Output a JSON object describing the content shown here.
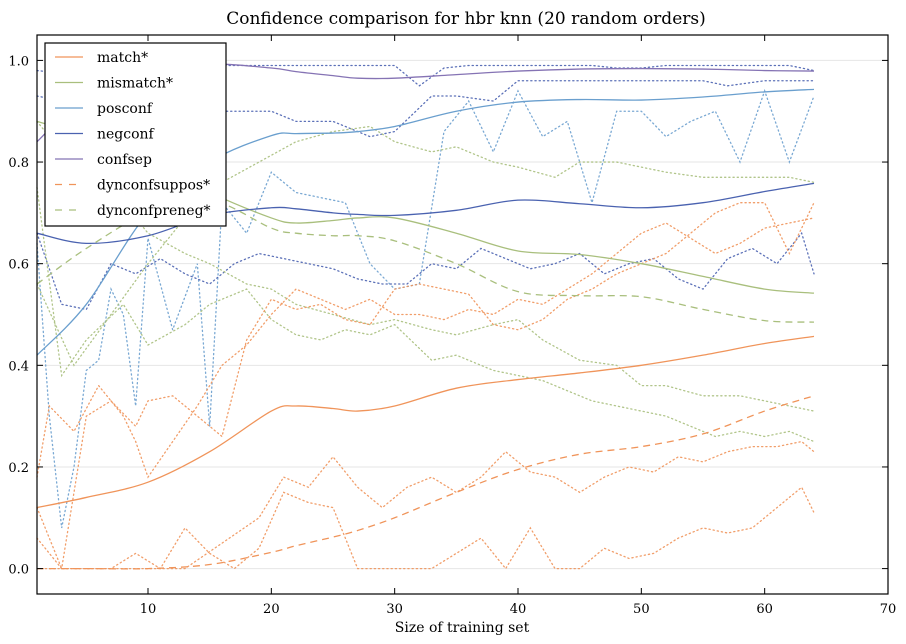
{
  "chart_data": {
    "type": "line",
    "title": "Confidence comparison for hbr knn (20 random orders)",
    "xlabel": "Size of training set",
    "ylabel": "",
    "xlim": [
      1,
      70
    ],
    "ylim": [
      -0.05,
      1.05
    ],
    "xticks": [
      10,
      20,
      30,
      40,
      50,
      60,
      70
    ],
    "xtick_labels": [
      "10",
      "20",
      "30",
      "40",
      "50",
      "60",
      "70"
    ],
    "yticks": [
      0.0,
      0.2,
      0.4,
      0.6,
      0.8,
      1.0
    ],
    "ytick_labels": [
      "0.0",
      "0.2",
      "0.4",
      "0.6",
      "0.8",
      "1.0"
    ],
    "grid": "horizontal",
    "legend_position": "top-left",
    "x": [
      1,
      5,
      10,
      15,
      20,
      22,
      25,
      27,
      30,
      35,
      40,
      45,
      50,
      55,
      60,
      64
    ],
    "series": [
      {
        "name": "match*",
        "style": "solid",
        "color": "#f0945a",
        "values": [
          0.12,
          0.14,
          0.17,
          0.23,
          0.31,
          0.32,
          0.315,
          0.31,
          0.32,
          0.355,
          0.372,
          0.385,
          0.4,
          0.42,
          0.443,
          0.457
        ]
      },
      {
        "name": "mismatch*",
        "style": "solid",
        "color": "#a9bf7d",
        "values": [
          0.88,
          0.85,
          0.8,
          0.74,
          0.69,
          0.68,
          0.685,
          0.69,
          0.69,
          0.66,
          0.625,
          0.618,
          0.6,
          0.575,
          0.55,
          0.542
        ]
      },
      {
        "name": "posconf",
        "style": "solid",
        "color": "#6a9fce",
        "values": [
          0.42,
          0.52,
          0.7,
          0.8,
          0.852,
          0.856,
          0.857,
          0.86,
          0.87,
          0.9,
          0.918,
          0.923,
          0.922,
          0.928,
          0.938,
          0.943
        ]
      },
      {
        "name": "negconf",
        "style": "solid",
        "color": "#4a62b0",
        "values": [
          0.66,
          0.64,
          0.655,
          0.695,
          0.71,
          0.708,
          0.7,
          0.697,
          0.695,
          0.705,
          0.725,
          0.718,
          0.71,
          0.72,
          0.742,
          0.758
        ]
      },
      {
        "name": "confsep",
        "style": "solid",
        "color": "#8573b4",
        "values": [
          0.84,
          0.93,
          0.98,
          0.993,
          0.985,
          0.978,
          0.97,
          0.965,
          0.965,
          0.972,
          0.979,
          0.983,
          0.984,
          0.983,
          0.98,
          0.979
        ]
      },
      {
        "name": "dynconfsuppos*",
        "style": "dashed",
        "color": "#f0945a",
        "values": [
          0.0,
          0.0,
          0.0,
          0.008,
          0.032,
          0.045,
          0.062,
          0.075,
          0.1,
          0.15,
          0.195,
          0.225,
          0.24,
          0.265,
          0.31,
          0.34
        ]
      },
      {
        "name": "dynconfpreneg*",
        "style": "dashed",
        "color": "#a9bf7d",
        "values": [
          0.56,
          0.63,
          0.7,
          0.725,
          0.67,
          0.66,
          0.655,
          0.655,
          0.645,
          0.6,
          0.545,
          0.537,
          0.535,
          0.51,
          0.488,
          0.485
        ]
      }
    ],
    "individual_orders": [
      {
        "color": "#6a9fce",
        "x": [
          1,
          2,
          3,
          4,
          5,
          6,
          7,
          8,
          9,
          10,
          12,
          14,
          15,
          16,
          18,
          20,
          22,
          24,
          26,
          28,
          30,
          32,
          34,
          36,
          38,
          40,
          42,
          44,
          46,
          48,
          50,
          52,
          54,
          56,
          58,
          60,
          62,
          64
        ],
        "values": [
          0.64,
          0.3,
          0.08,
          0.2,
          0.39,
          0.41,
          0.55,
          0.5,
          0.32,
          0.65,
          0.47,
          0.6,
          0.28,
          0.72,
          0.66,
          0.78,
          0.74,
          0.73,
          0.72,
          0.6,
          0.55,
          0.56,
          0.86,
          0.92,
          0.82,
          0.94,
          0.85,
          0.88,
          0.72,
          0.9,
          0.9,
          0.85,
          0.88,
          0.9,
          0.8,
          0.94,
          0.8,
          0.93
        ]
      },
      {
        "color": "#4a62b0",
        "x": [
          1,
          3,
          5,
          7,
          9,
          11,
          13,
          15,
          17,
          19,
          21,
          23,
          25,
          27,
          29,
          31,
          33,
          35,
          37,
          39,
          41,
          43,
          45,
          47,
          49,
          51,
          53,
          55,
          57,
          59,
          61,
          63,
          64
        ],
        "values": [
          0.66,
          0.52,
          0.51,
          0.6,
          0.58,
          0.61,
          0.58,
          0.56,
          0.6,
          0.62,
          0.61,
          0.6,
          0.59,
          0.57,
          0.56,
          0.56,
          0.6,
          0.59,
          0.63,
          0.61,
          0.59,
          0.6,
          0.62,
          0.58,
          0.6,
          0.61,
          0.57,
          0.55,
          0.61,
          0.63,
          0.6,
          0.66,
          0.58
        ]
      },
      {
        "color": "#4a62b0",
        "x": [
          1,
          5,
          10,
          15,
          18,
          20,
          22,
          25,
          28,
          30,
          32,
          34,
          36,
          38,
          40,
          42,
          44,
          46,
          48,
          50,
          52,
          54,
          56,
          58,
          60,
          62,
          64
        ],
        "values": [
          0.98,
          0.97,
          0.99,
          0.99,
          0.99,
          0.99,
          0.99,
          0.99,
          0.99,
          0.99,
          0.95,
          0.985,
          0.99,
          0.99,
          0.99,
          0.99,
          0.99,
          0.99,
          0.985,
          0.985,
          0.99,
          0.99,
          0.99,
          0.99,
          0.99,
          0.99,
          0.98
        ]
      },
      {
        "color": "#4a62b0",
        "x": [
          1,
          5,
          10,
          15,
          20,
          22,
          25,
          28,
          30,
          33,
          35,
          38,
          40,
          42,
          45,
          48,
          50,
          52,
          55,
          57,
          60,
          62,
          64
        ],
        "values": [
          0.93,
          0.91,
          0.88,
          0.9,
          0.9,
          0.88,
          0.88,
          0.85,
          0.86,
          0.93,
          0.93,
          0.92,
          0.96,
          0.96,
          0.96,
          0.96,
          0.96,
          0.96,
          0.96,
          0.95,
          0.96,
          0.96,
          0.96
        ]
      },
      {
        "color": "#a9bf7d",
        "x": [
          1,
          3,
          5,
          8,
          10,
          13,
          15,
          18,
          20,
          22,
          25,
          28,
          30,
          33,
          35,
          38,
          40,
          42,
          45,
          48,
          50,
          52,
          55,
          58,
          60,
          62,
          64
        ],
        "values": [
          0.88,
          0.82,
          0.78,
          0.72,
          0.66,
          0.62,
          0.6,
          0.56,
          0.55,
          0.52,
          0.5,
          0.48,
          0.49,
          0.47,
          0.46,
          0.48,
          0.49,
          0.45,
          0.41,
          0.4,
          0.36,
          0.36,
          0.34,
          0.34,
          0.33,
          0.32,
          0.31
        ]
      },
      {
        "color": "#a9bf7d",
        "x": [
          1,
          4,
          7,
          10,
          13,
          16,
          19,
          22,
          25,
          28,
          30,
          33,
          35,
          38,
          40,
          43,
          45,
          48,
          50,
          52,
          55,
          58,
          60,
          62,
          64
        ],
        "values": [
          0.56,
          0.4,
          0.5,
          0.6,
          0.69,
          0.76,
          0.8,
          0.84,
          0.86,
          0.87,
          0.84,
          0.82,
          0.83,
          0.8,
          0.79,
          0.77,
          0.8,
          0.8,
          0.79,
          0.78,
          0.77,
          0.77,
          0.77,
          0.77,
          0.76
        ]
      },
      {
        "color": "#a9bf7d",
        "x": [
          1,
          3,
          5,
          8,
          10,
          13,
          15,
          18,
          20,
          22,
          24,
          26,
          28,
          30,
          33,
          35,
          38,
          40,
          42,
          44,
          46,
          48,
          50,
          52,
          54,
          56,
          58,
          60,
          62,
          64
        ],
        "values": [
          0.75,
          0.38,
          0.45,
          0.52,
          0.44,
          0.48,
          0.52,
          0.55,
          0.49,
          0.46,
          0.45,
          0.47,
          0.46,
          0.48,
          0.41,
          0.42,
          0.39,
          0.38,
          0.37,
          0.35,
          0.33,
          0.32,
          0.31,
          0.3,
          0.28,
          0.26,
          0.27,
          0.26,
          0.27,
          0.25
        ]
      },
      {
        "color": "#f0945a",
        "x": [
          1,
          2,
          4,
          6,
          8,
          9,
          10,
          12,
          14,
          16,
          18,
          20,
          22,
          24,
          26,
          28,
          30,
          32,
          34,
          36,
          38,
          40,
          42,
          44,
          46,
          48,
          50,
          52,
          54,
          56,
          58,
          60,
          62,
          64
        ],
        "values": [
          0.18,
          0.32,
          0.27,
          0.36,
          0.3,
          0.25,
          0.18,
          0.25,
          0.32,
          0.4,
          0.44,
          0.5,
          0.55,
          0.53,
          0.51,
          0.53,
          0.5,
          0.5,
          0.49,
          0.51,
          0.5,
          0.53,
          0.52,
          0.55,
          0.58,
          0.62,
          0.66,
          0.68,
          0.65,
          0.62,
          0.64,
          0.67,
          0.68,
          0.69
        ]
      },
      {
        "color": "#f0945a",
        "x": [
          1,
          3,
          5,
          7,
          9,
          10,
          12,
          14,
          16,
          18,
          20,
          22,
          24,
          26,
          28,
          30,
          32,
          34,
          36,
          38,
          40,
          42,
          44,
          46,
          48,
          50,
          52,
          54,
          56,
          58,
          60,
          62,
          64
        ],
        "values": [
          0.06,
          0.0,
          0.3,
          0.33,
          0.28,
          0.33,
          0.34,
          0.3,
          0.26,
          0.45,
          0.53,
          0.51,
          0.52,
          0.49,
          0.48,
          0.55,
          0.56,
          0.55,
          0.54,
          0.48,
          0.47,
          0.49,
          0.53,
          0.55,
          0.58,
          0.6,
          0.62,
          0.66,
          0.7,
          0.72,
          0.72,
          0.62,
          0.72
        ]
      },
      {
        "color": "#f0945a",
        "x": [
          1,
          3,
          5,
          7,
          9,
          11,
          13,
          15,
          17,
          19,
          21,
          23,
          25,
          27,
          29,
          31,
          33,
          35,
          37,
          39,
          41,
          43,
          45,
          47,
          49,
          51,
          53,
          55,
          57,
          59,
          61,
          63,
          64
        ],
        "values": [
          0.12,
          0.0,
          0.0,
          0.0,
          0.03,
          0.0,
          0.08,
          0.03,
          0.0,
          0.04,
          0.15,
          0.13,
          0.12,
          0.0,
          0.0,
          0.0,
          0.0,
          0.03,
          0.06,
          0.0,
          0.08,
          0.0,
          0.0,
          0.04,
          0.02,
          0.03,
          0.06,
          0.08,
          0.07,
          0.08,
          0.12,
          0.16,
          0.11
        ]
      },
      {
        "color": "#f0945a",
        "x": [
          1,
          4,
          7,
          10,
          13,
          16,
          19,
          21,
          23,
          25,
          27,
          29,
          31,
          33,
          35,
          37,
          39,
          41,
          43,
          45,
          47,
          49,
          51,
          53,
          55,
          57,
          59,
          61,
          63,
          64
        ],
        "values": [
          0.0,
          0.0,
          0.0,
          0.0,
          0.0,
          0.05,
          0.1,
          0.18,
          0.16,
          0.22,
          0.16,
          0.12,
          0.16,
          0.18,
          0.15,
          0.18,
          0.23,
          0.19,
          0.18,
          0.15,
          0.18,
          0.2,
          0.19,
          0.22,
          0.21,
          0.23,
          0.24,
          0.24,
          0.25,
          0.23
        ]
      }
    ]
  }
}
